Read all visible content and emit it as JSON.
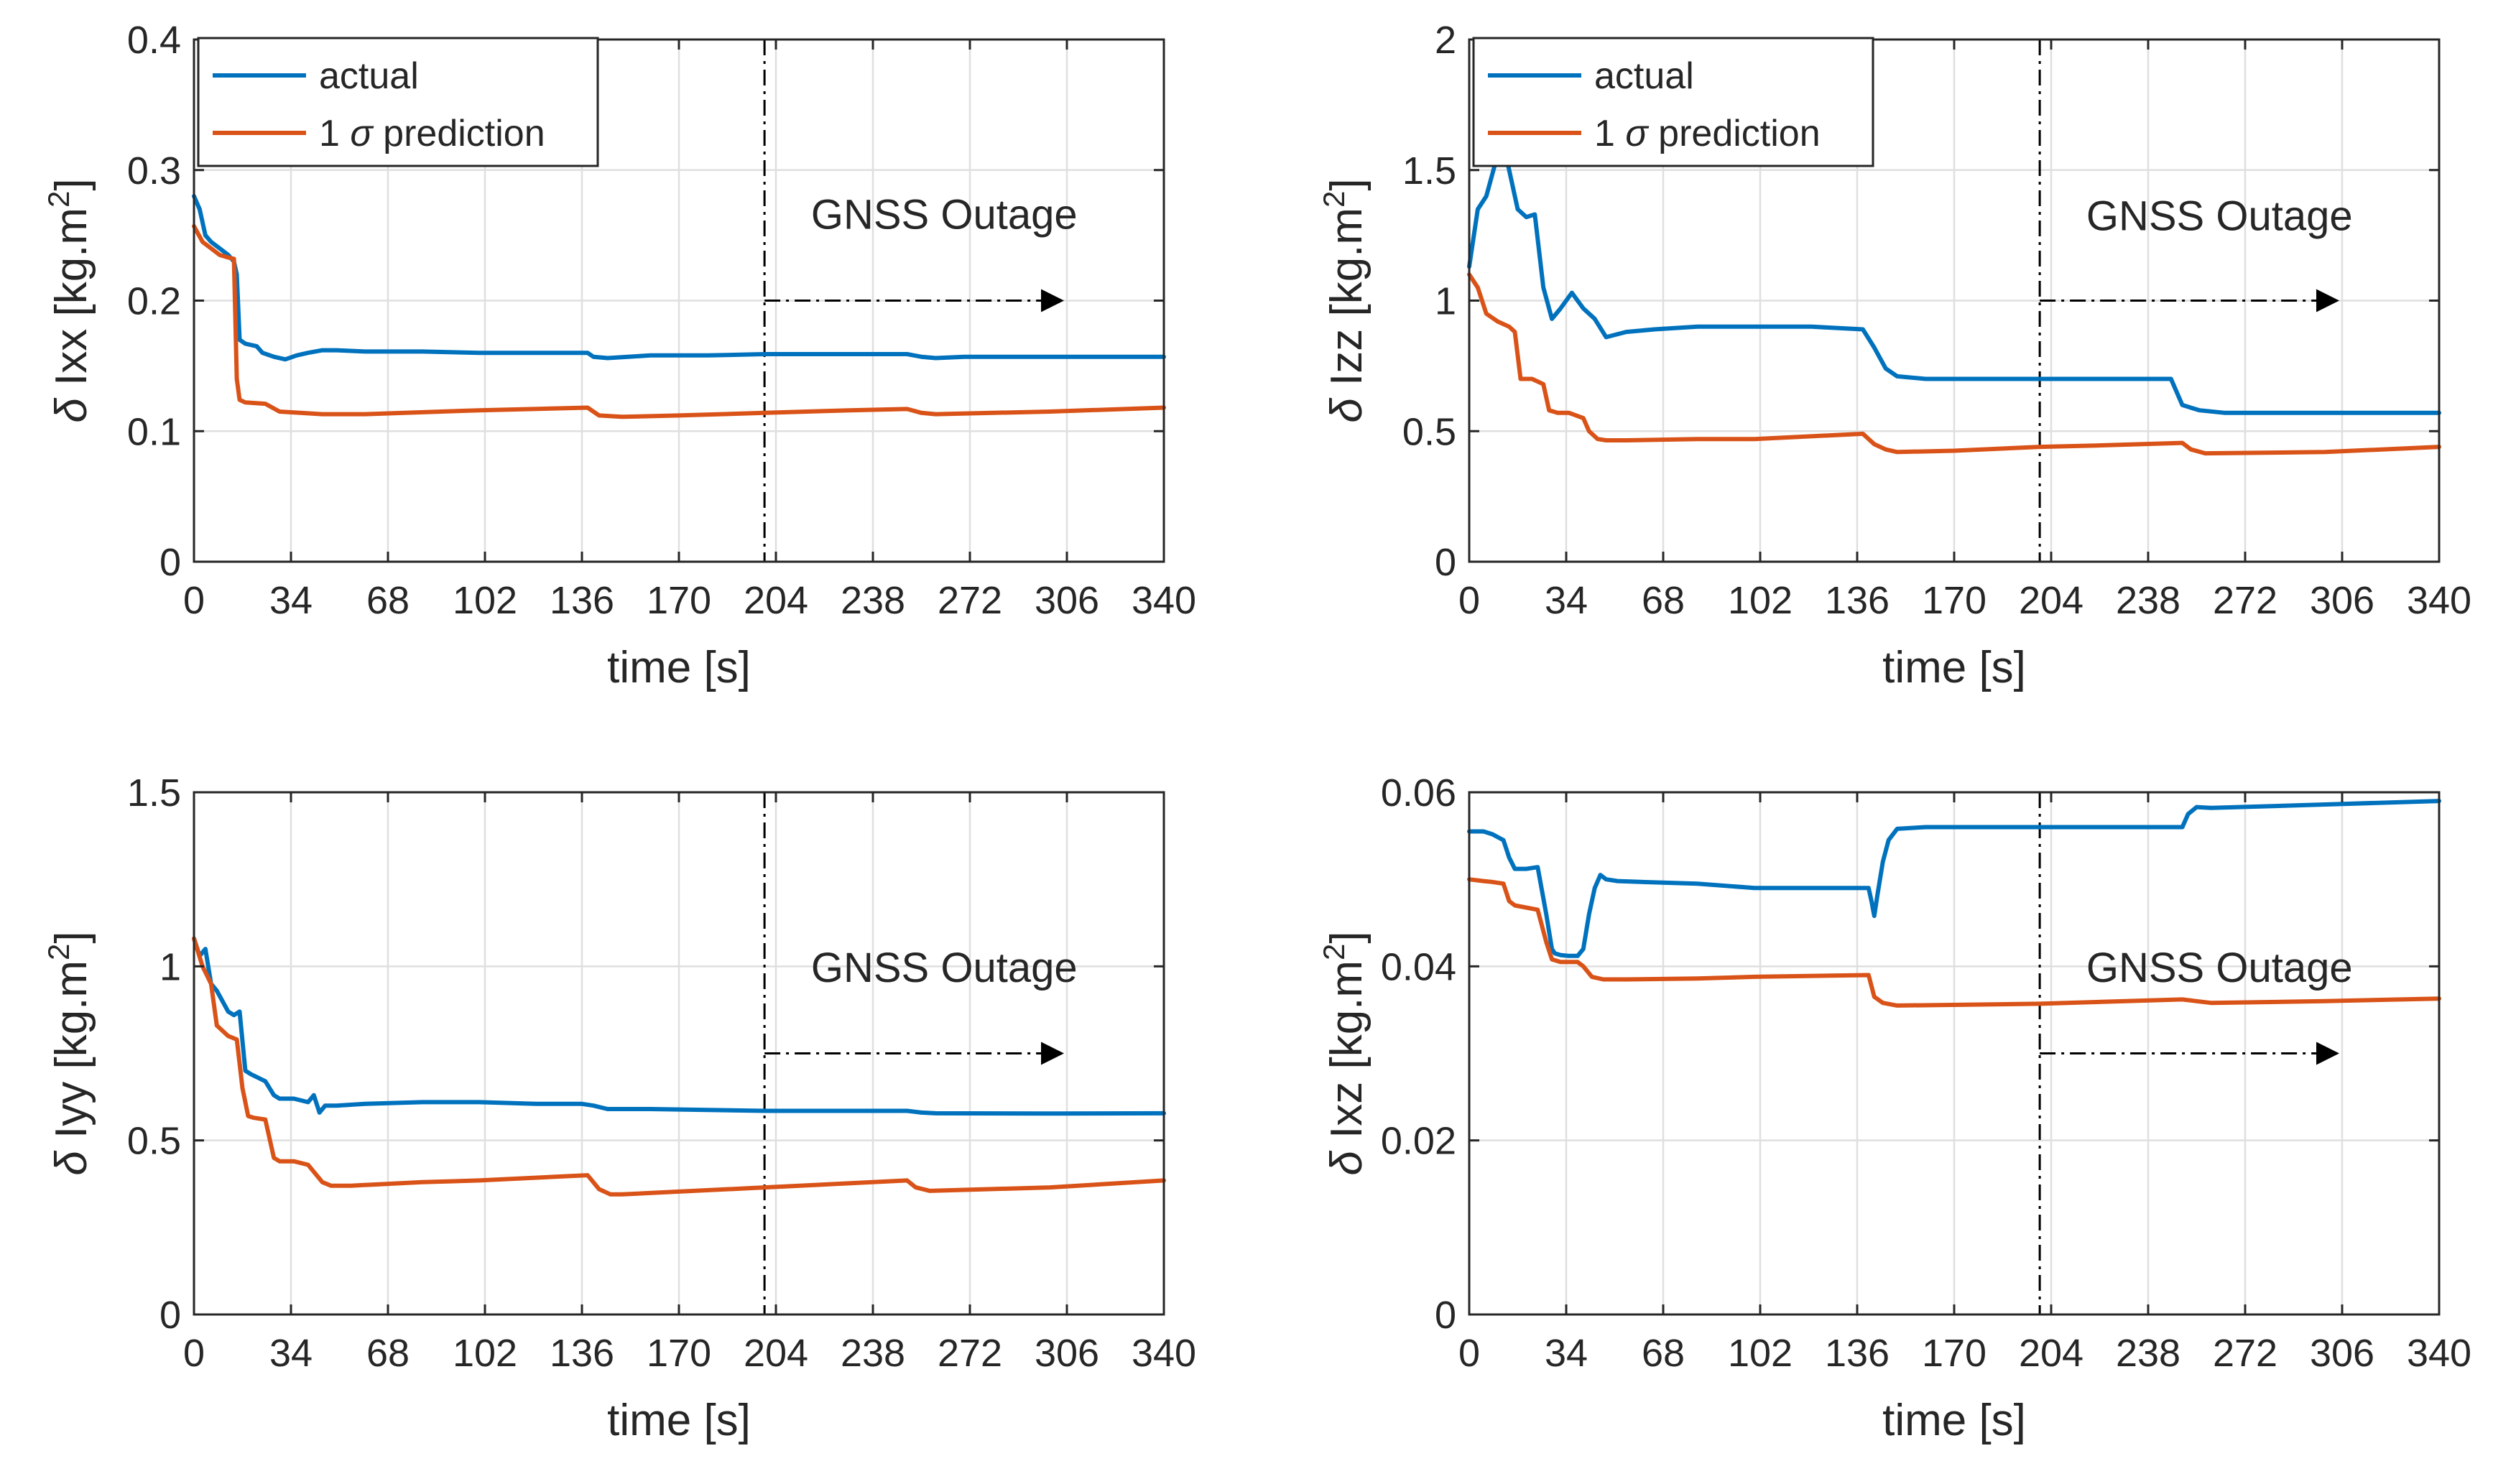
{
  "colors": {
    "actual": "#0072BD",
    "prediction": "#D95319"
  },
  "chart_data": [
    {
      "type": "line",
      "panel": "top-left",
      "xlabel": "time  [s]",
      "ylabel_symbol": "δ",
      "ylabel_name": "Ixx",
      "ylabel_unit": "[kg.m",
      "ylabel_sup": "2",
      "ylabel_close": "]",
      "xlim": [
        0,
        340
      ],
      "ylim": [
        0,
        0.4
      ],
      "xticks": [
        0,
        34,
        68,
        102,
        136,
        170,
        204,
        238,
        272,
        306,
        340
      ],
      "xtick_labels": [
        "0",
        "34",
        "68",
        "102",
        "136",
        "170",
        "204",
        "238",
        "272",
        "306",
        "340"
      ],
      "yticks": [
        0,
        0.1,
        0.2,
        0.3,
        0.4
      ],
      "ytick_labels": [
        "0",
        "0.1",
        "0.2",
        "0.3",
        "0.4"
      ],
      "annotation": "GNSS Outage",
      "outage_start": 200,
      "outage_arrow": {
        "from_x": 200,
        "to_x": 305,
        "y": 0.2
      },
      "annotation_pos": {
        "x": 263,
        "y": 0.255
      },
      "legend": {
        "entries": [
          "actual",
          "1 ",
          "σ",
          " prediction"
        ]
      },
      "series": [
        {
          "name": "actual",
          "x": [
            0,
            2,
            4,
            6,
            9,
            12,
            14,
            15,
            16,
            18,
            22,
            24,
            28,
            32,
            36,
            40,
            45,
            50,
            60,
            80,
            100,
            120,
            138,
            140,
            145,
            160,
            180,
            200,
            220,
            250,
            255,
            260,
            270,
            300,
            340
          ],
          "y": [
            0.28,
            0.27,
            0.25,
            0.245,
            0.24,
            0.235,
            0.23,
            0.22,
            0.17,
            0.167,
            0.165,
            0.16,
            0.157,
            0.155,
            0.158,
            0.16,
            0.162,
            0.162,
            0.161,
            0.161,
            0.16,
            0.16,
            0.16,
            0.157,
            0.156,
            0.158,
            0.158,
            0.159,
            0.159,
            0.159,
            0.157,
            0.156,
            0.157,
            0.157,
            0.157
          ]
        },
        {
          "name": "1 σ prediction",
          "x": [
            0,
            3,
            6,
            9,
            12,
            14,
            15,
            16,
            18,
            25,
            30,
            45,
            60,
            100,
            138,
            142,
            150,
            170,
            200,
            230,
            250,
            255,
            260,
            300,
            340
          ],
          "y": [
            0.257,
            0.245,
            0.24,
            0.235,
            0.233,
            0.232,
            0.14,
            0.124,
            0.122,
            0.121,
            0.115,
            0.113,
            0.113,
            0.116,
            0.118,
            0.112,
            0.111,
            0.112,
            0.114,
            0.116,
            0.117,
            0.114,
            0.113,
            0.115,
            0.118
          ]
        }
      ]
    },
    {
      "type": "line",
      "panel": "top-right",
      "xlabel": "time  [s]",
      "ylabel_symbol": "δ",
      "ylabel_name": "Izz",
      "ylabel_unit": "[kg.m",
      "ylabel_sup": "2",
      "ylabel_close": "]",
      "xlim": [
        0,
        340
      ],
      "ylim": [
        0,
        2
      ],
      "xticks": [
        0,
        34,
        68,
        102,
        136,
        170,
        204,
        238,
        272,
        306,
        340
      ],
      "xtick_labels": [
        "0",
        "34",
        "68",
        "102",
        "136",
        "170",
        "204",
        "238",
        "272",
        "306",
        "340"
      ],
      "yticks": [
        0,
        0.5,
        1,
        1.5,
        2
      ],
      "ytick_labels": [
        "0",
        "0.5",
        "1",
        "1.5",
        "2"
      ],
      "annotation": "GNSS Outage",
      "outage_start": 200,
      "outage_arrow": {
        "from_x": 200,
        "to_x": 305,
        "y": 1.0
      },
      "annotation_pos": {
        "x": 263,
        "y": 1.27
      },
      "legend": {
        "entries": [
          "actual",
          "1 ",
          "σ",
          " prediction"
        ]
      },
      "series": [
        {
          "name": "actual",
          "x": [
            0,
            3,
            6,
            9,
            12,
            14,
            17,
            20,
            23,
            26,
            29,
            32,
            36,
            40,
            44,
            48,
            55,
            65,
            80,
            100,
            120,
            138,
            142,
            146,
            150,
            160,
            180,
            200,
            220,
            246,
            250,
            256,
            265,
            300,
            340
          ],
          "y": [
            1.13,
            1.35,
            1.4,
            1.52,
            1.6,
            1.5,
            1.35,
            1.32,
            1.33,
            1.05,
            0.93,
            0.97,
            1.03,
            0.97,
            0.93,
            0.86,
            0.88,
            0.89,
            0.9,
            0.9,
            0.9,
            0.89,
            0.82,
            0.74,
            0.71,
            0.7,
            0.7,
            0.7,
            0.7,
            0.7,
            0.6,
            0.58,
            0.57,
            0.57,
            0.57
          ]
        },
        {
          "name": "1 σ prediction",
          "x": [
            0,
            3,
            6,
            10,
            14,
            16,
            18,
            22,
            26,
            28,
            31,
            35,
            40,
            42,
            45,
            48,
            55,
            80,
            100,
            138,
            142,
            146,
            150,
            170,
            200,
            220,
            250,
            253,
            258,
            300,
            340
          ],
          "y": [
            1.1,
            1.05,
            0.95,
            0.92,
            0.9,
            0.88,
            0.7,
            0.7,
            0.68,
            0.58,
            0.57,
            0.57,
            0.55,
            0.5,
            0.47,
            0.465,
            0.465,
            0.47,
            0.47,
            0.49,
            0.45,
            0.43,
            0.42,
            0.425,
            0.44,
            0.445,
            0.455,
            0.43,
            0.415,
            0.42,
            0.44
          ]
        }
      ]
    },
    {
      "type": "line",
      "panel": "bottom-left",
      "xlabel": "time  [s]",
      "ylabel_symbol": "δ",
      "ylabel_name": "Iyy",
      "ylabel_unit": "[kg.m",
      "ylabel_sup": "2",
      "ylabel_close": "]",
      "xlim": [
        0,
        340
      ],
      "ylim": [
        0,
        1.5
      ],
      "xticks": [
        0,
        34,
        68,
        102,
        136,
        170,
        204,
        238,
        272,
        306,
        340
      ],
      "xtick_labels": [
        "0",
        "34",
        "68",
        "102",
        "136",
        "170",
        "204",
        "238",
        "272",
        "306",
        "340"
      ],
      "yticks": [
        0,
        0.5,
        1,
        1.5
      ],
      "ytick_labels": [
        "0",
        "0.5",
        "1",
        "1.5"
      ],
      "annotation": "GNSS Outage",
      "outage_start": 200,
      "outage_arrow": {
        "from_x": 200,
        "to_x": 305,
        "y": 0.75
      },
      "annotation_pos": {
        "x": 263,
        "y": 0.955
      },
      "series": [
        {
          "name": "actual",
          "x": [
            0,
            2,
            4,
            6,
            8,
            10,
            12,
            14,
            16,
            18,
            20,
            25,
            28,
            30,
            35,
            40,
            42,
            44,
            46,
            50,
            60,
            80,
            100,
            120,
            136,
            140,
            145,
            160,
            200,
            250,
            255,
            260,
            300,
            340
          ],
          "y": [
            1.08,
            1.03,
            1.05,
            0.95,
            0.93,
            0.9,
            0.87,
            0.86,
            0.87,
            0.7,
            0.69,
            0.67,
            0.63,
            0.62,
            0.62,
            0.61,
            0.63,
            0.58,
            0.6,
            0.6,
            0.605,
            0.61,
            0.61,
            0.605,
            0.605,
            0.6,
            0.59,
            0.59,
            0.585,
            0.585,
            0.58,
            0.578,
            0.577,
            0.578
          ]
        },
        {
          "name": "1 σ prediction",
          "x": [
            0,
            3,
            6,
            8,
            12,
            15,
            17,
            19,
            21,
            25,
            28,
            30,
            35,
            40,
            45,
            48,
            55,
            80,
            100,
            138,
            142,
            146,
            150,
            200,
            250,
            253,
            258,
            300,
            340
          ],
          "y": [
            1.08,
            1.0,
            0.95,
            0.83,
            0.8,
            0.79,
            0.65,
            0.57,
            0.565,
            0.56,
            0.45,
            0.44,
            0.44,
            0.43,
            0.38,
            0.37,
            0.37,
            0.38,
            0.385,
            0.4,
            0.36,
            0.345,
            0.345,
            0.365,
            0.385,
            0.365,
            0.355,
            0.365,
            0.385
          ]
        }
      ]
    },
    {
      "type": "line",
      "panel": "bottom-right",
      "xlabel": "time  [s]",
      "ylabel_symbol": "δ",
      "ylabel_name": "Ixz",
      "ylabel_unit": "[kg.m",
      "ylabel_sup": "2",
      "ylabel_close": "]",
      "xlim": [
        0,
        340
      ],
      "ylim": [
        0,
        0.06
      ],
      "xticks": [
        0,
        34,
        68,
        102,
        136,
        170,
        204,
        238,
        272,
        306,
        340
      ],
      "xtick_labels": [
        "0",
        "34",
        "68",
        "102",
        "136",
        "170",
        "204",
        "238",
        "272",
        "306",
        "340"
      ],
      "yticks": [
        0,
        0.02,
        0.04,
        0.06
      ],
      "ytick_labels": [
        "0",
        "0.02",
        "0.04",
        "0.06"
      ],
      "annotation": "GNSS Outage",
      "outage_start": 200,
      "outage_arrow": {
        "from_x": 200,
        "to_x": 305,
        "y": 0.03
      },
      "annotation_pos": {
        "x": 263,
        "y": 0.0382
      },
      "series": [
        {
          "name": "actual",
          "x": [
            0,
            5,
            8,
            12,
            14,
            16,
            20,
            24,
            27,
            29,
            30,
            32,
            35,
            38,
            40,
            42,
            44,
            46,
            48,
            52,
            60,
            80,
            100,
            120,
            140,
            141,
            142,
            143,
            145,
            147,
            150,
            160,
            200,
            240,
            250,
            252,
            255,
            260,
            300,
            340
          ],
          "y": [
            0.0555,
            0.0555,
            0.0552,
            0.0545,
            0.0525,
            0.0512,
            0.0512,
            0.0514,
            0.046,
            0.042,
            0.0415,
            0.0413,
            0.0412,
            0.0412,
            0.042,
            0.046,
            0.049,
            0.0505,
            0.05,
            0.0498,
            0.0497,
            0.0495,
            0.049,
            0.049,
            0.049,
            0.0475,
            0.0458,
            0.048,
            0.052,
            0.0545,
            0.0558,
            0.056,
            0.056,
            0.056,
            0.056,
            0.0575,
            0.0583,
            0.0582,
            0.0586,
            0.059
          ]
        },
        {
          "name": "1 σ prediction",
          "x": [
            0,
            5,
            8,
            12,
            14,
            16,
            24,
            27,
            29,
            32,
            35,
            38,
            40,
            43,
            47,
            55,
            80,
            100,
            140,
            142,
            145,
            150,
            200,
            250,
            255,
            260,
            300,
            340
          ],
          "y": [
            0.05,
            0.0498,
            0.0497,
            0.0495,
            0.0475,
            0.047,
            0.0465,
            0.0428,
            0.0408,
            0.0405,
            0.0405,
            0.0405,
            0.04,
            0.0388,
            0.0385,
            0.0385,
            0.0386,
            0.0388,
            0.039,
            0.0365,
            0.0358,
            0.0355,
            0.0357,
            0.0362,
            0.036,
            0.0358,
            0.036,
            0.0363
          ]
        }
      ]
    }
  ]
}
